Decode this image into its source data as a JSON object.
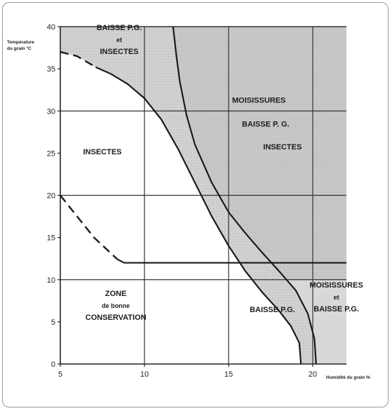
{
  "chart_data": {
    "type": "diagram",
    "title": "",
    "ylabel": "Température du grain °C",
    "xlabel": "Humidité du grain %",
    "xlim": [
      5,
      22
    ],
    "ylim": [
      0,
      40
    ],
    "x_ticks": [
      5,
      10,
      15,
      20
    ],
    "y_ticks": [
      0,
      5,
      10,
      15,
      20,
      25,
      30,
      35,
      40
    ],
    "grid_x": [
      10,
      15,
      20
    ],
    "grid_y": [
      10,
      20,
      30
    ],
    "colors": {
      "shade_light": "#d9d9d9",
      "shade_dark": "#c6c6c6",
      "line": "#1a1a1a",
      "grid": "#333333"
    },
    "curves": {
      "insect_limit_dashed": [
        [
          5,
          37
        ],
        [
          6,
          36.5
        ],
        [
          7.1,
          35.2
        ]
      ],
      "insect_limit": [
        [
          7.1,
          35.2
        ],
        [
          8,
          34.4
        ],
        [
          9,
          33.2
        ],
        [
          10,
          31.5
        ],
        [
          11,
          29
        ],
        [
          12,
          25.5
        ],
        [
          13,
          21.5
        ],
        [
          14,
          17.5
        ],
        [
          15,
          14
        ],
        [
          16,
          11
        ],
        [
          17,
          8.5
        ],
        [
          18,
          6.3
        ],
        [
          18.7,
          4.5
        ],
        [
          19.2,
          2.5
        ],
        [
          19.3,
          0
        ]
      ],
      "mould_limit": [
        [
          11.7,
          40
        ],
        [
          11.9,
          36.5
        ],
        [
          12.1,
          33.5
        ],
        [
          12.5,
          29.5
        ],
        [
          13,
          26
        ],
        [
          14,
          21.5
        ],
        [
          15,
          18
        ],
        [
          16,
          15.5
        ],
        [
          17,
          13.2
        ],
        [
          18,
          11
        ],
        [
          19,
          8.7
        ],
        [
          19.7,
          6
        ],
        [
          20.1,
          3
        ],
        [
          20.2,
          0
        ]
      ],
      "conservation_dashed": [
        [
          5,
          20
        ],
        [
          6,
          17.5
        ],
        [
          7,
          15
        ],
        [
          8.4,
          12.4
        ]
      ],
      "conservation_solid": [
        [
          8.4,
          12.4
        ],
        [
          8.8,
          12
        ],
        [
          22,
          12
        ]
      ]
    },
    "regions": [
      {
        "label": [
          "BAISSE P.G.",
          "et",
          "INSECTES"
        ],
        "at": [
          8.5,
          38.5
        ]
      },
      {
        "label": [
          "MOISISSURES"
        ],
        "at": [
          16.8,
          31.3
        ]
      },
      {
        "label": [
          "BAISSE P. G."
        ],
        "at": [
          17.2,
          28.5
        ]
      },
      {
        "label": [
          "INSECTES"
        ],
        "at": [
          18.2,
          25.8
        ]
      },
      {
        "label": [
          "INSECTES"
        ],
        "at": [
          7.5,
          25.2
        ]
      },
      {
        "label": [
          "ZONE",
          "de bonne",
          "CONSERVATION"
        ],
        "at": [
          8.3,
          7
        ]
      },
      {
        "label": [
          "BAISSE P.G."
        ],
        "at": [
          17.6,
          6.5
        ]
      },
      {
        "label": [
          "MOISISSURES",
          "et",
          "BAISSE P.G."
        ],
        "at": [
          21.4,
          8
        ]
      }
    ]
  }
}
